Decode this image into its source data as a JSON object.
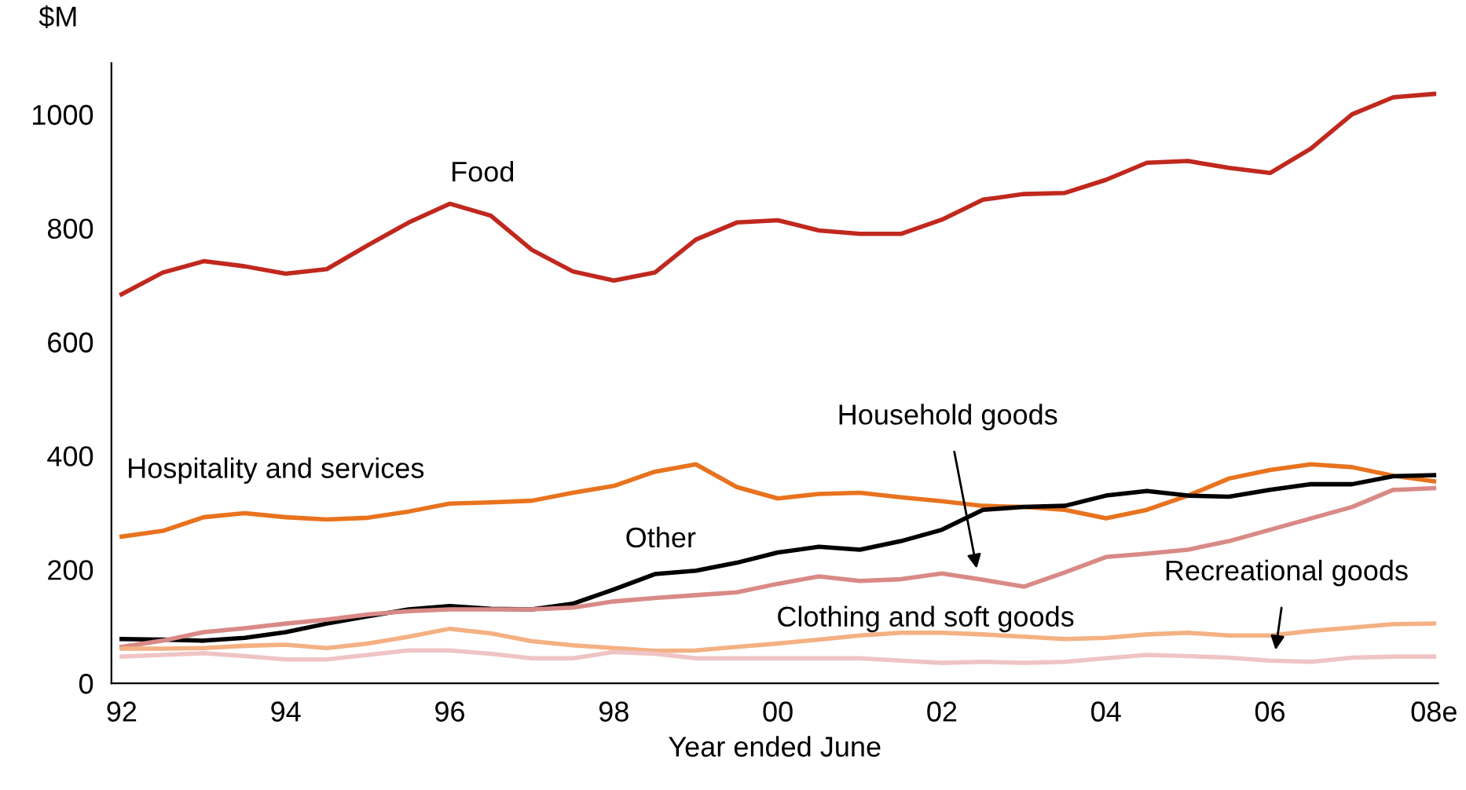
{
  "chart_data": {
    "type": "line",
    "xlabel": "Year ended June",
    "ylabel": "$M",
    "categories": [
      "92",
      null,
      null,
      null,
      "94",
      null,
      null,
      null,
      "96",
      null,
      null,
      null,
      "98",
      null,
      null,
      null,
      "00",
      null,
      null,
      null,
      "02",
      null,
      null,
      null,
      "04",
      null,
      null,
      null,
      "06",
      null,
      null,
      null,
      "08e"
    ],
    "ylim": [
      0,
      1090
    ],
    "yticks": [
      0,
      200,
      400,
      600,
      800,
      1000
    ],
    "grid": false,
    "legend": false,
    "marker": "none",
    "line_style": "solid",
    "series": [
      {
        "name": "Food",
        "color": "#c0281e",
        "values": [
          684,
          722,
          742,
          733,
          720,
          728,
          770,
          810,
          843,
          822,
          762,
          724,
          708,
          722,
          780,
          810,
          814,
          796,
          790,
          790,
          815,
          850,
          860,
          862,
          885,
          915,
          918,
          906,
          897,
          940,
          1000,
          1030,
          1036
        ]
      },
      {
        "name": "Hospitality and services",
        "color": "#e8731e",
        "values": [
          258,
          268,
          292,
          299,
          292,
          288,
          291,
          302,
          316,
          318,
          321,
          335,
          347,
          372,
          385,
          345,
          325,
          333,
          335,
          327,
          320,
          312,
          310,
          305,
          290,
          305,
          330,
          360,
          375,
          385,
          380,
          365,
          355
        ]
      },
      {
        "name": "Other",
        "color": "#000000",
        "values": [
          78,
          77,
          75,
          80,
          90,
          105,
          118,
          130,
          136,
          131,
          130,
          140,
          165,
          192,
          198,
          212,
          230,
          240,
          235,
          250,
          270,
          305,
          310,
          312,
          330,
          338,
          330,
          328,
          340,
          350,
          350,
          364,
          366
        ]
      },
      {
        "name": "Household goods",
        "color": "#d98a86",
        "values": [
          64,
          75,
          90,
          97,
          105,
          112,
          121,
          127,
          130,
          130,
          130,
          133,
          144,
          150,
          155,
          160,
          175,
          188,
          180,
          183,
          193,
          182,
          170,
          195,
          222,
          228,
          235,
          250,
          270,
          290,
          310,
          340,
          343
        ]
      },
      {
        "name": "Clothing and soft goods",
        "color": "#f4b183",
        "values": [
          61,
          61,
          62,
          66,
          68,
          62,
          70,
          82,
          96,
          88,
          74,
          67,
          62,
          57,
          58,
          64,
          70,
          77,
          84,
          89,
          89,
          86,
          82,
          78,
          80,
          86,
          89,
          84,
          84,
          92,
          98,
          104,
          105
        ]
      },
      {
        "name": "Recreational goods",
        "color": "#efc4c4",
        "values": [
          47,
          50,
          53,
          48,
          42,
          42,
          50,
          58,
          58,
          52,
          44,
          44,
          55,
          52,
          44,
          44,
          44,
          44,
          44,
          40,
          36,
          38,
          36,
          38,
          44,
          50,
          48,
          45,
          40,
          38,
          45,
          47,
          47
        ]
      }
    ]
  }
}
